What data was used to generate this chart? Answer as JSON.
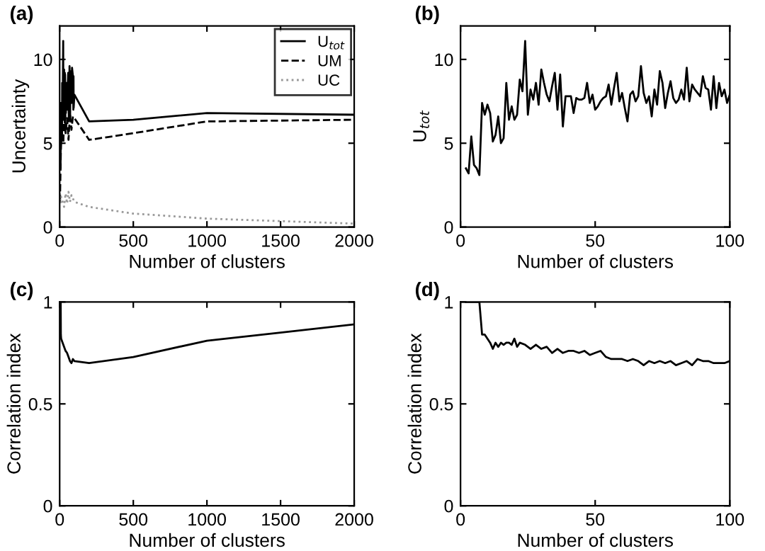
{
  "chart_data": [
    {
      "type": "line",
      "title": "(a)",
      "xlabel": "Number of clusters",
      "ylabel": "Uncertainty",
      "xlim": [
        0,
        2000
      ],
      "ylim": [
        0,
        12
      ],
      "xticks": [
        0,
        500,
        1000,
        1500,
        2000
      ],
      "yticks": [
        0,
        5,
        10
      ],
      "grid": false,
      "legend": "top right",
      "series": [
        {
          "name": "U$_{tot}$",
          "color": "#000000",
          "line_style": "solid",
          "x": [
            2,
            4,
            6,
            8,
            10,
            12,
            14,
            16,
            17,
            18,
            20,
            22,
            24,
            25,
            26,
            28,
            30,
            32,
            35,
            36,
            37,
            38,
            40,
            42,
            45,
            47,
            50,
            55,
            58,
            60,
            62,
            67,
            70,
            71,
            74,
            80,
            84,
            90,
            93,
            94,
            95,
            100,
            200,
            500,
            1000,
            2000
          ],
          "values": [
            3.5,
            5.4,
            3.5,
            7.4,
            7.3,
            5.1,
            6.6,
            5.3,
            8.6,
            6.4,
            6.4,
            8.8,
            11.1,
            6.7,
            8.2,
            8.6,
            9.4,
            7.9,
            9.2,
            7.0,
            9.1,
            6.0,
            7.8,
            6.8,
            7.6,
            8.6,
            7.0,
            8.5,
            9.2,
            8.0,
            6.3,
            9.6,
            7.8,
            6.6,
            9.3,
            7.4,
            9.5,
            9.0,
            7.0,
            9.0,
            7.1,
            7.9,
            6.3,
            6.4,
            6.8,
            6.7
          ]
        },
        {
          "name": "UM",
          "color": "#000000",
          "line_style": "dashed",
          "x": [
            2,
            5,
            8,
            10,
            15,
            20,
            25,
            30,
            40,
            50,
            60,
            70,
            80,
            90,
            100,
            200,
            500,
            1000,
            2000
          ],
          "values": [
            1.5,
            3.0,
            4.5,
            5.0,
            5.5,
            6.0,
            5.0,
            6.8,
            5.6,
            6.5,
            5.2,
            6.8,
            5.8,
            6.6,
            6.5,
            5.2,
            5.6,
            6.3,
            6.4
          ]
        },
        {
          "name": "UC",
          "color": "#999999",
          "line_style": "dotted",
          "x": [
            2,
            5,
            10,
            20,
            30,
            40,
            50,
            60,
            70,
            80,
            100,
            200,
            500,
            1000,
            2000
          ],
          "values": [
            2.0,
            1.4,
            1.8,
            1.5,
            1.2,
            2.0,
            1.4,
            2.1,
            1.5,
            1.9,
            1.5,
            1.2,
            0.8,
            0.5,
            0.2
          ]
        }
      ]
    },
    {
      "type": "line",
      "title": "(b)",
      "xlabel": "Number of clusters",
      "ylabel": "U$_{tot}$",
      "xlim": [
        0,
        100
      ],
      "ylim": [
        0,
        12
      ],
      "xticks": [
        0,
        50,
        100
      ],
      "yticks": [
        0,
        5,
        10
      ],
      "grid": false,
      "legend": false,
      "series": [
        {
          "color": "#000000",
          "line_style": "solid",
          "x": [
            2,
            3,
            4,
            5,
            6,
            7,
            8,
            9,
            10,
            11,
            12,
            13,
            14,
            15,
            16,
            17,
            18,
            19,
            20,
            21,
            22,
            23,
            24,
            25,
            26,
            27,
            28,
            29,
            30,
            31,
            32,
            33,
            34,
            35,
            36,
            37,
            38,
            39,
            40,
            41,
            42,
            43,
            44,
            45,
            46,
            47,
            48,
            49,
            50,
            51,
            52,
            53,
            54,
            55,
            56,
            57,
            58,
            59,
            60,
            61,
            62,
            63,
            64,
            65,
            66,
            67,
            68,
            69,
            70,
            71,
            72,
            73,
            74,
            75,
            76,
            77,
            78,
            79,
            80,
            81,
            82,
            83,
            84,
            85,
            86,
            87,
            88,
            89,
            90,
            91,
            92,
            93,
            94,
            95,
            96,
            97,
            98,
            99,
            100
          ],
          "values": [
            3.5,
            3.2,
            5.4,
            3.7,
            3.5,
            3.1,
            7.4,
            6.7,
            7.3,
            6.8,
            5.1,
            5.5,
            6.6,
            5.0,
            5.3,
            8.6,
            6.4,
            7.2,
            6.4,
            6.7,
            8.8,
            8.1,
            11.1,
            6.7,
            8.2,
            7.6,
            8.6,
            7.3,
            9.4,
            8.6,
            7.9,
            7.5,
            8.4,
            9.2,
            7.0,
            9.1,
            6.0,
            7.8,
            7.8,
            7.8,
            6.8,
            7.7,
            7.6,
            7.6,
            7.7,
            8.6,
            7.4,
            7.9,
            7.0,
            7.2,
            7.5,
            7.7,
            7.8,
            8.5,
            7.3,
            8.3,
            9.2,
            7.5,
            8.0,
            7.1,
            6.3,
            7.9,
            8.1,
            7.5,
            7.8,
            9.6,
            8.0,
            7.4,
            7.8,
            6.6,
            8.2,
            7.3,
            9.3,
            8.6,
            7.1,
            8.0,
            8.7,
            7.7,
            7.4,
            7.6,
            8.2,
            7.6,
            9.5,
            7.5,
            8.5,
            8.2,
            8.0,
            7.8,
            9.0,
            8.3,
            8.2,
            7.0,
            9.0,
            7.1,
            8.6,
            7.8,
            8.2,
            7.4,
            7.9
          ]
        }
      ]
    },
    {
      "type": "line",
      "title": "(c)",
      "xlabel": "Number of clusters",
      "ylabel": "Correlation index",
      "xlim": [
        0,
        2000
      ],
      "ylim": [
        0,
        1
      ],
      "xticks": [
        0,
        500,
        1000,
        1500,
        2000
      ],
      "yticks": [
        0,
        0.5,
        1
      ],
      "grid": false,
      "legend": false,
      "series": [
        {
          "color": "#000000",
          "line_style": "solid",
          "x": [
            2,
            7,
            8,
            10,
            20,
            30,
            40,
            50,
            60,
            70,
            80,
            90,
            100,
            200,
            500,
            1000,
            1500,
            2000
          ],
          "values": [
            1.0,
            1.0,
            0.84,
            0.82,
            0.8,
            0.78,
            0.76,
            0.75,
            0.73,
            0.71,
            0.7,
            0.72,
            0.71,
            0.7,
            0.73,
            0.81,
            0.85,
            0.89
          ]
        }
      ]
    },
    {
      "type": "line",
      "title": "(d)",
      "xlabel": "Number of clusters",
      "ylabel": "Correlation index",
      "xlim": [
        0,
        100
      ],
      "ylim": [
        0,
        1
      ],
      "xticks": [
        0,
        50,
        100
      ],
      "yticks": [
        0,
        0.5,
        1
      ],
      "grid": false,
      "legend": false,
      "series": [
        {
          "color": "#000000",
          "line_style": "solid",
          "x": [
            2,
            7,
            8,
            9,
            10,
            11,
            12,
            13,
            14,
            15,
            16,
            17,
            18,
            19,
            20,
            21,
            22,
            24,
            26,
            28,
            30,
            32,
            34,
            36,
            38,
            40,
            42,
            44,
            46,
            48,
            50,
            52,
            54,
            56,
            58,
            60,
            62,
            64,
            66,
            68,
            70,
            72,
            74,
            76,
            78,
            80,
            82,
            84,
            86,
            88,
            90,
            92,
            94,
            96,
            98,
            100
          ],
          "values": [
            1.0,
            1.0,
            0.84,
            0.84,
            0.82,
            0.8,
            0.77,
            0.8,
            0.78,
            0.8,
            0.79,
            0.8,
            0.8,
            0.79,
            0.82,
            0.78,
            0.8,
            0.79,
            0.77,
            0.79,
            0.77,
            0.78,
            0.75,
            0.77,
            0.75,
            0.76,
            0.76,
            0.75,
            0.76,
            0.74,
            0.75,
            0.76,
            0.73,
            0.72,
            0.72,
            0.72,
            0.71,
            0.72,
            0.71,
            0.69,
            0.71,
            0.7,
            0.71,
            0.7,
            0.71,
            0.69,
            0.7,
            0.71,
            0.69,
            0.72,
            0.71,
            0.71,
            0.7,
            0.7,
            0.7,
            0.71
          ]
        }
      ]
    }
  ]
}
